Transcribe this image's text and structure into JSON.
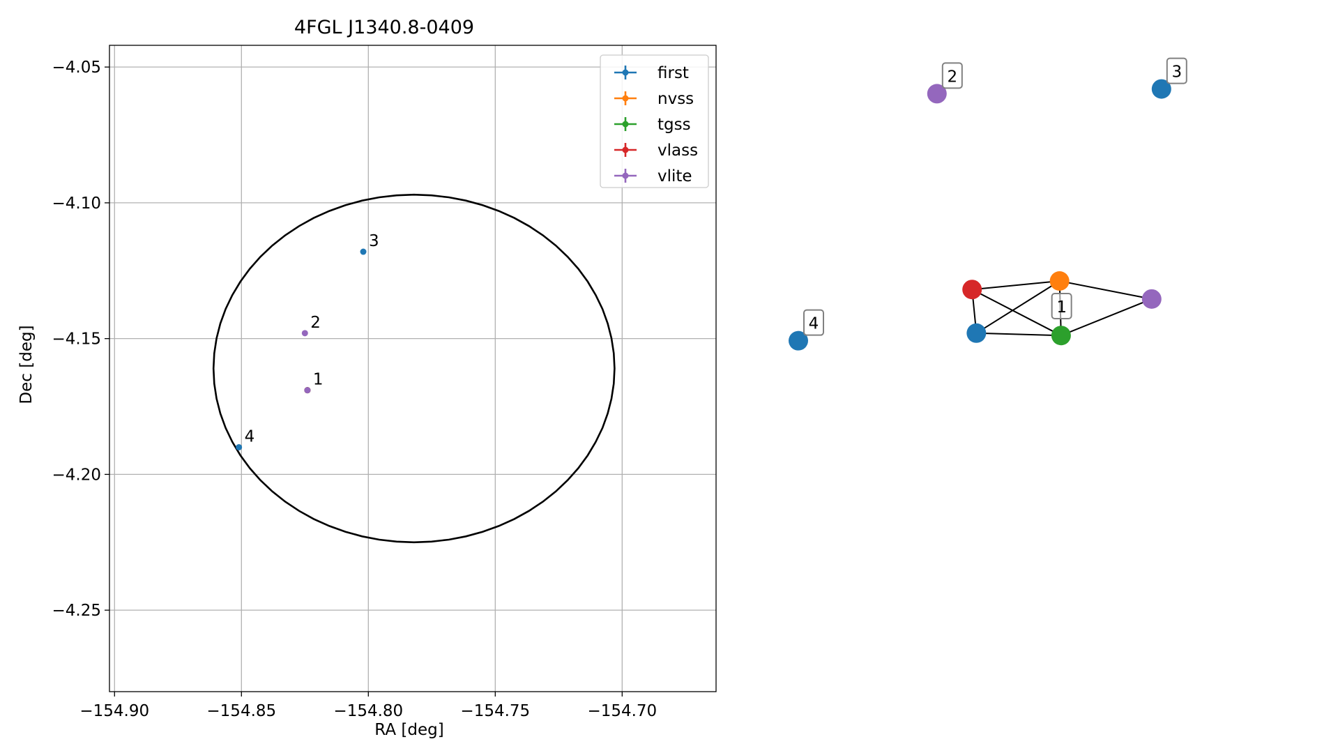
{
  "chart_data": [
    {
      "type": "scatter",
      "title": "4FGL J1340.8-0409",
      "xlabel": "RA [deg]",
      "ylabel": "Dec [deg]",
      "xlim": [
        -154.902,
        -154.663
      ],
      "ylim": [
        -4.28,
        -4.042
      ],
      "xticks": [
        -154.9,
        -154.85,
        -154.8,
        -154.75,
        -154.7
      ],
      "xtick_labels": [
        "−154.90",
        "−154.85",
        "−154.80",
        "−154.75",
        "−154.70"
      ],
      "yticks": [
        -4.05,
        -4.1,
        -4.15,
        -4.2,
        -4.25
      ],
      "ytick_labels": [
        "−4.05",
        "−4.10",
        "−4.15",
        "−4.20",
        "−4.25"
      ],
      "grid": true,
      "legend_position": "top-right",
      "series": [
        {
          "name": "first",
          "color": "#1f77b4",
          "points": [
            {
              "x": -154.802,
              "y": -4.118
            },
            {
              "x": -154.851,
              "y": -4.19
            },
            {
              "x": -154.824,
              "y": -4.169
            }
          ]
        },
        {
          "name": "nvss",
          "color": "#ff7f0e",
          "points": [
            {
              "x": -154.824,
              "y": -4.169
            }
          ]
        },
        {
          "name": "tgss",
          "color": "#2ca02c",
          "points": [
            {
              "x": -154.824,
              "y": -4.169
            }
          ]
        },
        {
          "name": "vlass",
          "color": "#d62728",
          "points": [
            {
              "x": -154.824,
              "y": -4.169
            }
          ]
        },
        {
          "name": "vlite",
          "color": "#9467bd",
          "points": [
            {
              "x": -154.825,
              "y": -4.148
            },
            {
              "x": -154.824,
              "y": -4.169
            }
          ]
        }
      ],
      "annotations": [
        {
          "text": "1",
          "x": -154.824,
          "y": -4.169
        },
        {
          "text": "2",
          "x": -154.825,
          "y": -4.148
        },
        {
          "text": "3",
          "x": -154.802,
          "y": -4.118
        },
        {
          "text": "4",
          "x": -154.851,
          "y": -4.19
        }
      ],
      "ellipse": {
        "center_x": -154.782,
        "center_y": -4.161,
        "semi_axis_x": 0.079,
        "semi_axis_y": 0.064,
        "color": "#000000"
      }
    },
    {
      "type": "network",
      "nodes": [
        {
          "id": "r",
          "survey": "vlass",
          "color": "#d62728",
          "x": 0.445,
          "y": 0.493
        },
        {
          "id": "o",
          "survey": "nvss",
          "color": "#ff7f0e",
          "x": 0.669,
          "y": 0.475
        },
        {
          "id": "p",
          "survey": "vlite",
          "color": "#9467bd",
          "x": 0.905,
          "y": 0.513
        },
        {
          "id": "b",
          "survey": "first",
          "color": "#1f77b4",
          "x": 0.456,
          "y": 0.585
        },
        {
          "id": "g",
          "survey": "tgss",
          "color": "#2ca02c",
          "x": 0.673,
          "y": 0.59
        },
        {
          "id": "n2",
          "survey": "vlite",
          "color": "#9467bd",
          "x": 0.355,
          "y": 0.08
        },
        {
          "id": "n3",
          "survey": "first",
          "color": "#1f77b4",
          "x": 0.93,
          "y": 0.07
        },
        {
          "id": "n4",
          "survey": "first",
          "color": "#1f77b4",
          "x": -0.0,
          "y": 0.601
        }
      ],
      "edges": [
        [
          "r",
          "o"
        ],
        [
          "r",
          "b"
        ],
        [
          "r",
          "g"
        ],
        [
          "o",
          "b"
        ],
        [
          "o",
          "g"
        ],
        [
          "o",
          "p"
        ],
        [
          "b",
          "g"
        ],
        [
          "g",
          "p"
        ]
      ],
      "labels": [
        {
          "text": "1",
          "node": "o"
        },
        {
          "text": "2",
          "node": "n2"
        },
        {
          "text": "3",
          "node": "n3"
        },
        {
          "text": "4",
          "node": "n4"
        }
      ]
    }
  ]
}
